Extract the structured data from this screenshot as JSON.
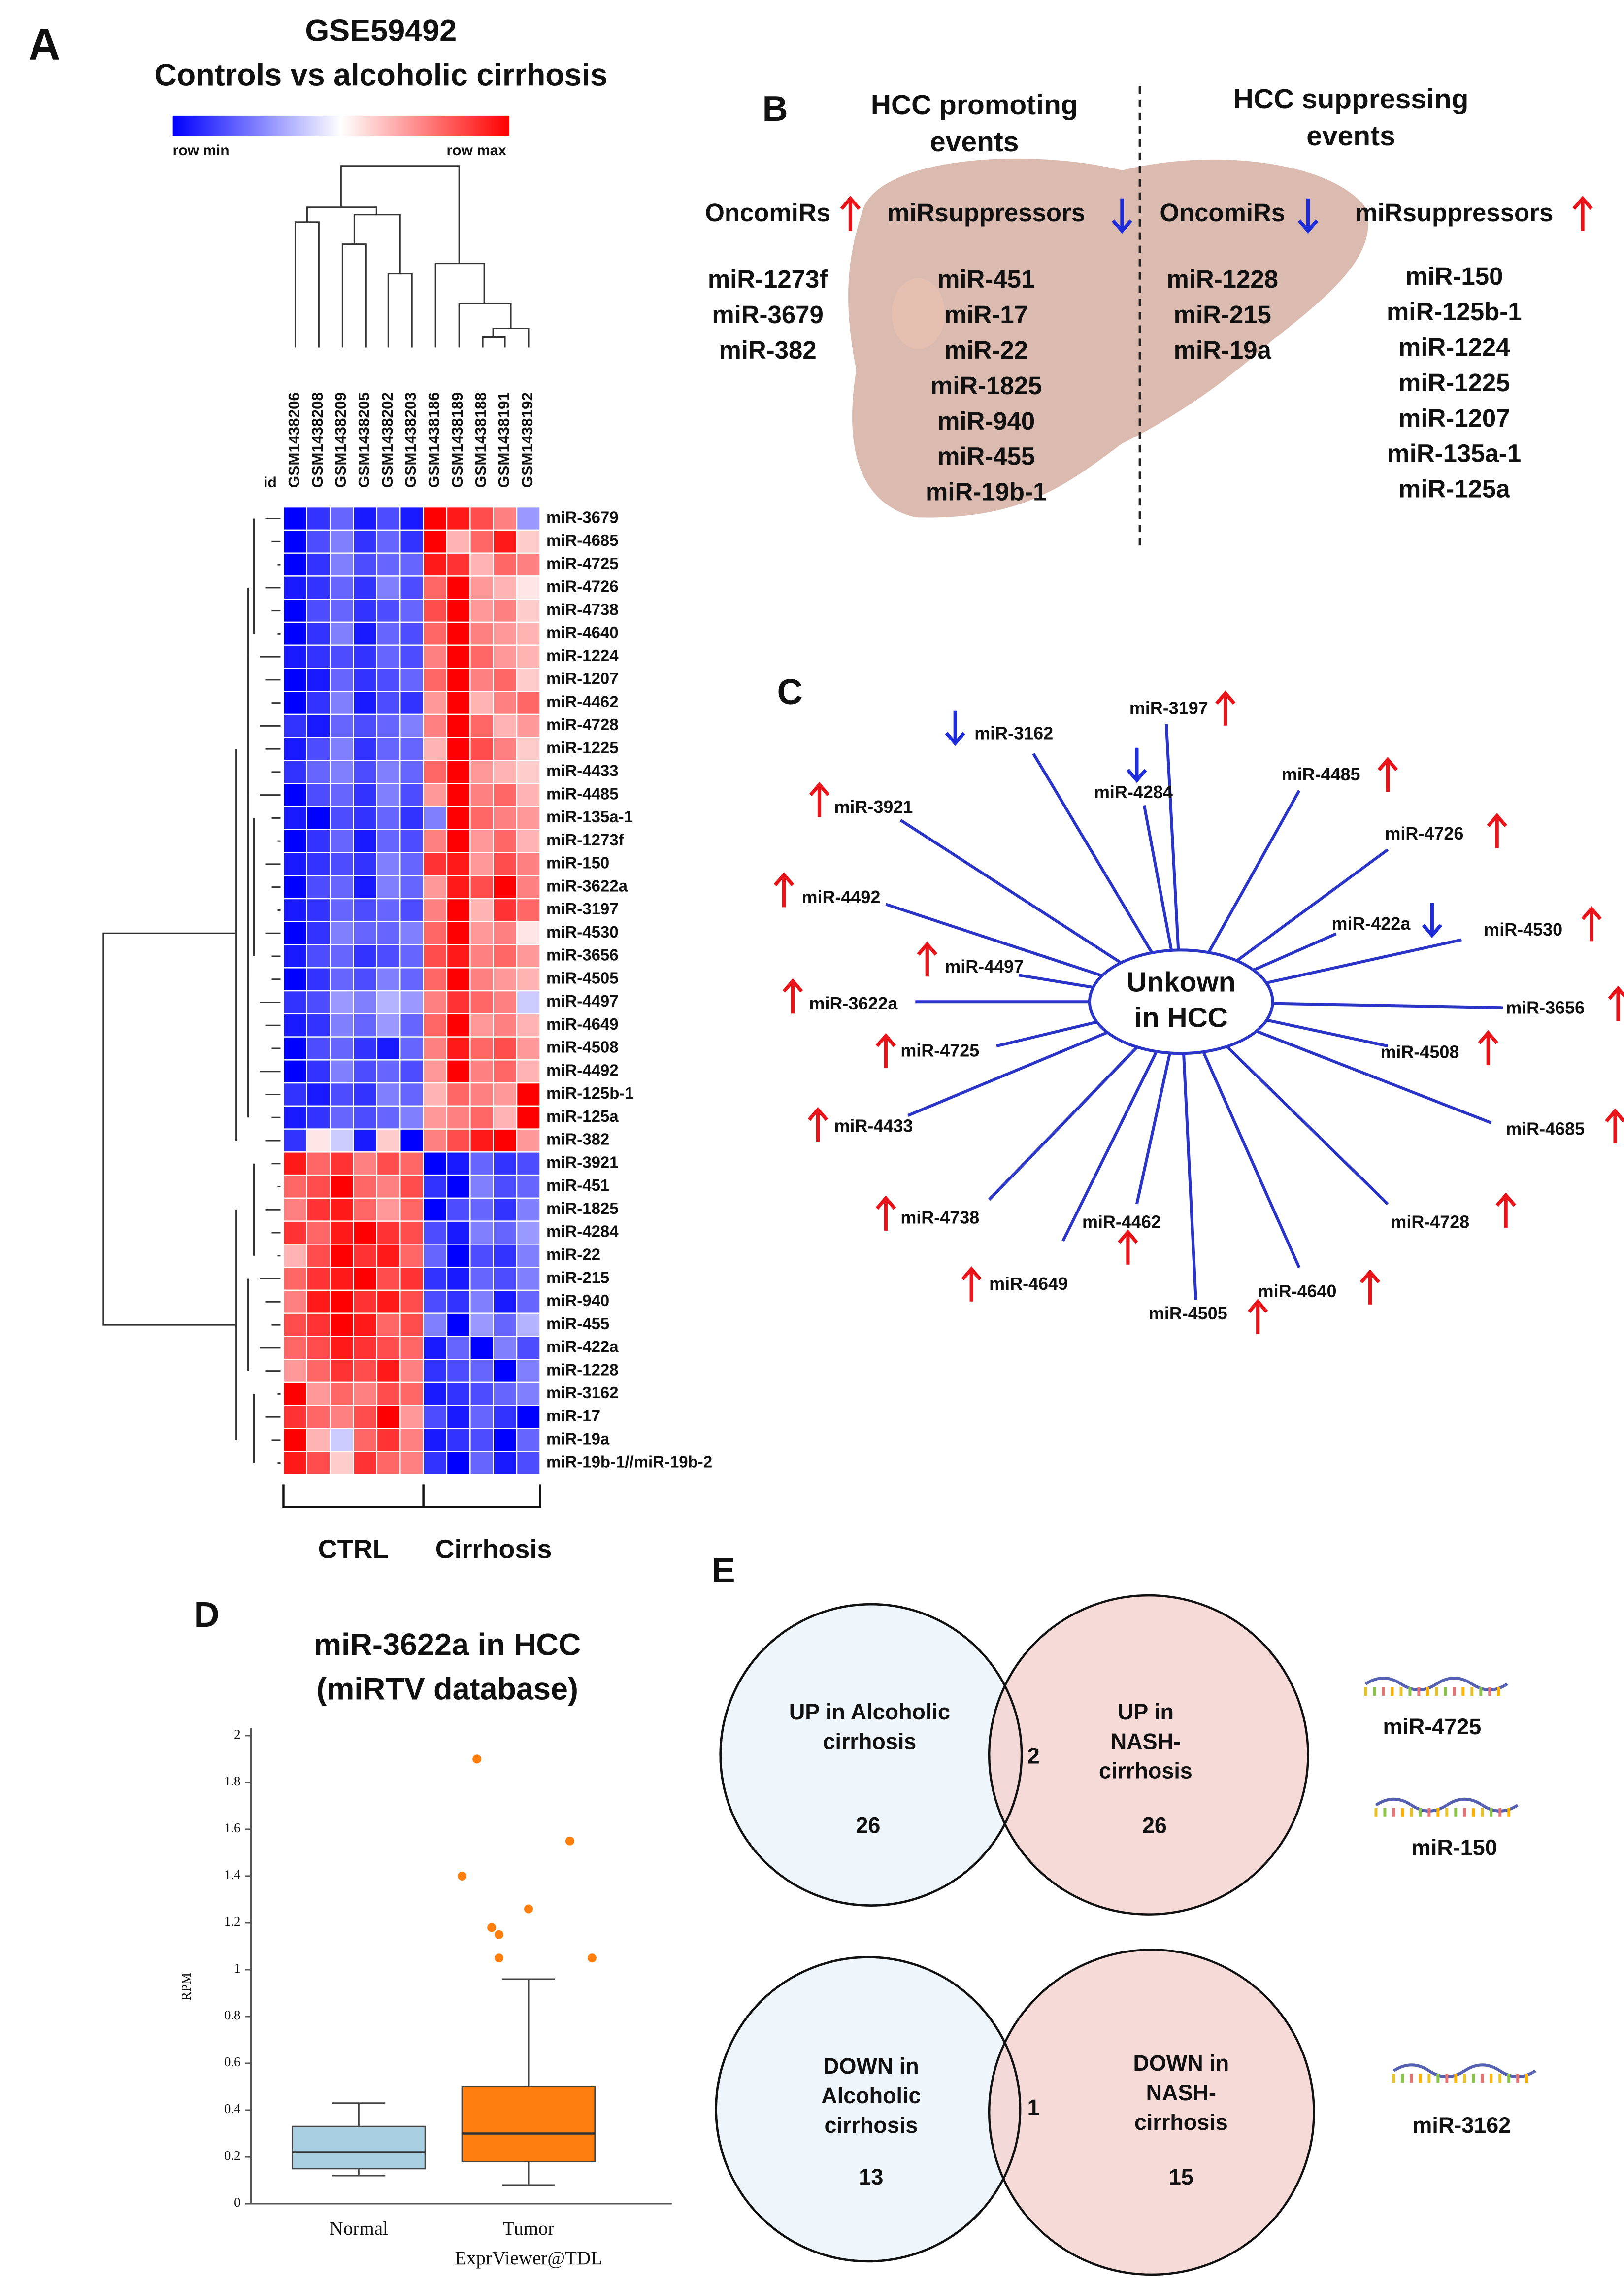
{
  "panel_a": {
    "letter": "A",
    "title": [
      "GSE59492",
      "Controls vs alcoholic cirrhosis"
    ],
    "color_scale": {
      "min_label": "row min",
      "max_label": "row max"
    },
    "column_header": "id",
    "columns": [
      "GSM1438206",
      "GSM1438208",
      "GSM1438209",
      "GSM1438205",
      "GSM1438202",
      "GSM1438203",
      "GSM1438186",
      "GSM1438189",
      "GSM1438188",
      "GSM1438191",
      "GSM1438192"
    ],
    "rows": [
      "miR-3679",
      "miR-4685",
      "miR-4725",
      "miR-4726",
      "miR-4738",
      "miR-4640",
      "miR-1224",
      "miR-1207",
      "miR-4462",
      "miR-4728",
      "miR-1225",
      "miR-4433",
      "miR-4485",
      "miR-135a-1",
      "miR-1273f",
      "miR-150",
      "miR-3622a",
      "miR-3197",
      "miR-4530",
      "miR-3656",
      "miR-4505",
      "miR-4497",
      "miR-4649",
      "miR-4508",
      "miR-4492",
      "miR-125b-1",
      "miR-125a",
      "miR-382",
      "miR-3921",
      "miR-451",
      "miR-1825",
      "miR-4284",
      "miR-22",
      "miR-215",
      "miR-940",
      "miR-455",
      "miR-422a",
      "miR-1228",
      "miR-3162",
      "miR-17",
      "miR-19a",
      "miR-19b-1//miR-19b-2"
    ],
    "values": [
      [
        -1,
        -0.8,
        -0.6,
        -0.9,
        -0.7,
        -0.9,
        1,
        0.9,
        0.7,
        0.5,
        -0.4
      ],
      [
        -1,
        -0.7,
        -0.5,
        -0.8,
        -0.6,
        -0.8,
        1,
        0.3,
        0.6,
        0.9,
        0.2
      ],
      [
        -1,
        -0.8,
        -0.5,
        -0.7,
        -0.6,
        -0.6,
        0.9,
        0.8,
        0.3,
        0.6,
        0.5
      ],
      [
        -0.9,
        -0.8,
        -0.6,
        -0.8,
        -0.5,
        -0.7,
        0.6,
        1,
        0.4,
        0.3,
        0.1
      ],
      [
        -1,
        -0.7,
        -0.6,
        -0.8,
        -0.7,
        -0.6,
        0.7,
        1,
        0.4,
        0.5,
        0.2
      ],
      [
        -1,
        -0.8,
        -0.5,
        -0.9,
        -0.6,
        -0.7,
        0.6,
        1,
        0.5,
        0.4,
        0.3
      ],
      [
        -0.9,
        -0.8,
        -0.7,
        -0.8,
        -0.6,
        -0.7,
        0.5,
        1,
        0.6,
        0.4,
        0.3
      ],
      [
        -1,
        -0.9,
        -0.6,
        -0.8,
        -0.7,
        -0.6,
        0.6,
        1,
        0.5,
        0.6,
        0.2
      ],
      [
        -1,
        -0.8,
        -0.5,
        -0.9,
        -0.7,
        -0.8,
        0.4,
        1,
        0.3,
        0.5,
        0.6
      ],
      [
        -0.8,
        -0.9,
        -0.6,
        -0.7,
        -0.6,
        -0.5,
        0.5,
        1,
        0.6,
        0.3,
        0.4
      ],
      [
        -0.9,
        -0.7,
        -0.5,
        -0.8,
        -0.6,
        -0.6,
        0.3,
        1,
        0.7,
        0.5,
        0.2
      ],
      [
        -0.8,
        -0.6,
        -0.5,
        -0.7,
        -0.5,
        -0.6,
        0.6,
        1,
        0.4,
        0.3,
        0.2
      ],
      [
        -1,
        -0.7,
        -0.6,
        -0.8,
        -0.5,
        -0.7,
        0.4,
        1,
        0.5,
        0.6,
        0.3
      ],
      [
        -0.9,
        -1,
        -0.7,
        -0.8,
        -0.6,
        -0.8,
        -0.5,
        1,
        0.6,
        0.5,
        0.4
      ],
      [
        -1,
        -0.8,
        -0.6,
        -0.9,
        -0.6,
        -0.7,
        0.5,
        1,
        0.4,
        0.6,
        0.3
      ],
      [
        -0.9,
        -0.8,
        -0.7,
        -0.8,
        -0.5,
        -0.6,
        0.8,
        0.9,
        0.4,
        0.7,
        0.5
      ],
      [
        -1,
        -0.7,
        -0.6,
        -0.9,
        -0.5,
        -0.6,
        0.4,
        0.9,
        0.7,
        1,
        0.5
      ],
      [
        -0.9,
        -0.8,
        -0.6,
        -0.7,
        -0.6,
        -0.7,
        0.5,
        1,
        0.3,
        0.8,
        0.6
      ],
      [
        -1,
        -0.8,
        -0.5,
        -0.6,
        -0.6,
        -0.5,
        0.6,
        1,
        0.4,
        0.5,
        0.1
      ],
      [
        -0.9,
        -0.7,
        -0.6,
        -0.8,
        -0.7,
        -0.6,
        0.7,
        0.9,
        0.5,
        0.6,
        0.4
      ],
      [
        -1,
        -0.8,
        -0.6,
        -0.7,
        -0.5,
        -0.6,
        0.6,
        1,
        0.5,
        0.4,
        0.3
      ],
      [
        -0.8,
        -0.7,
        -0.4,
        -0.5,
        -0.3,
        -0.4,
        0.5,
        0.8,
        0.6,
        0.5,
        -0.2
      ],
      [
        -0.9,
        -0.8,
        -0.5,
        -0.6,
        -0.4,
        -0.6,
        0.6,
        1,
        0.4,
        0.5,
        0.3
      ],
      [
        -1,
        -0.7,
        -0.6,
        -0.8,
        -0.9,
        -0.6,
        0.5,
        0.9,
        0.6,
        0.7,
        0.4
      ],
      [
        -1,
        -0.8,
        -0.5,
        -0.7,
        -0.6,
        -0.7,
        0.4,
        1,
        0.5,
        0.6,
        0.3
      ],
      [
        -0.8,
        -0.9,
        -0.7,
        -0.8,
        -0.5,
        -0.6,
        0.3,
        0.6,
        0.5,
        0.4,
        1
      ],
      [
        -0.9,
        -0.8,
        -0.6,
        -0.7,
        -0.6,
        -0.5,
        0.4,
        0.5,
        0.6,
        0.3,
        1
      ],
      [
        -0.8,
        0.1,
        -0.2,
        -0.9,
        0.2,
        -1,
        0.5,
        0.7,
        0.9,
        1,
        0.4
      ],
      [
        0.9,
        0.6,
        0.8,
        0.5,
        0.7,
        0.6,
        -1,
        -0.9,
        -0.6,
        -0.8,
        -0.7
      ],
      [
        0.6,
        0.7,
        1,
        0.6,
        0.5,
        0.7,
        -0.8,
        -1,
        -0.5,
        -0.7,
        -0.6
      ],
      [
        0.5,
        0.8,
        0.9,
        0.6,
        0.4,
        0.6,
        -1,
        -0.7,
        -0.6,
        -0.8,
        -0.5
      ],
      [
        0.8,
        0.6,
        0.9,
        1,
        0.8,
        0.7,
        -0.7,
        -0.9,
        -0.5,
        -0.6,
        -0.4
      ],
      [
        0.3,
        0.7,
        1,
        0.8,
        0.9,
        0.6,
        -0.6,
        -1,
        -0.7,
        -0.8,
        -0.5
      ],
      [
        0.6,
        0.8,
        0.9,
        1,
        0.7,
        0.8,
        -0.8,
        -0.9,
        -0.6,
        -0.7,
        -0.5
      ],
      [
        0.5,
        0.9,
        1,
        0.8,
        0.9,
        0.7,
        -0.7,
        -0.8,
        -0.5,
        -0.9,
        -0.6
      ],
      [
        0.7,
        0.8,
        1,
        0.9,
        0.6,
        0.7,
        -0.5,
        -1,
        -0.4,
        -0.6,
        -0.3
      ],
      [
        0.6,
        0.7,
        0.9,
        0.8,
        0.7,
        0.6,
        -0.9,
        -0.6,
        -1,
        -0.5,
        -0.7
      ],
      [
        0.4,
        0.6,
        0.8,
        0.7,
        0.9,
        0.5,
        -0.8,
        -0.7,
        -0.6,
        -1,
        -0.5
      ],
      [
        1,
        0.4,
        0.6,
        0.5,
        0.7,
        0.6,
        -0.9,
        -0.8,
        -0.7,
        -0.6,
        -0.5
      ],
      [
        0.8,
        0.6,
        0.5,
        0.7,
        1,
        0.4,
        -0.7,
        -0.9,
        -0.6,
        -0.8,
        -1
      ],
      [
        1,
        0.3,
        -0.2,
        0.6,
        0.8,
        0.5,
        -0.9,
        -0.8,
        -0.7,
        -1,
        -0.6
      ],
      [
        0.9,
        0.7,
        0.2,
        0.8,
        0.6,
        0.5,
        -0.8,
        -1,
        -0.6,
        -0.9,
        -0.7
      ]
    ],
    "groups": [
      "CTRL",
      "Cirrhosis"
    ]
  },
  "panel_b": {
    "letter": "B",
    "promoting": {
      "title": [
        "HCC promoting",
        "events"
      ],
      "oncomirs": {
        "header": "OncomiRs",
        "items": [
          "miR-1273f",
          "miR-3679",
          "miR-382"
        ]
      },
      "suppressors": {
        "header": "miRsuppressors",
        "items": [
          "miR-451",
          "miR-17",
          "miR-22",
          "miR-1825",
          "miR-940",
          "miR-455",
          "miR-19b-1"
        ]
      }
    },
    "suppressing": {
      "title": [
        "HCC suppressing",
        "events"
      ],
      "oncomirs": {
        "header": "OncomiRs",
        "items": [
          "miR-1228",
          "miR-215",
          "miR-19a"
        ]
      },
      "suppressors": {
        "header": "miRsuppressors",
        "items": [
          "miR-150",
          "miR-125b-1",
          "miR-1224",
          "miR-1225",
          "miR-1207",
          "miR-135a-1",
          "miR-125a"
        ]
      }
    }
  },
  "panel_c": {
    "letter": "C",
    "center": [
      "Unkown",
      "in HCC"
    ],
    "nodes": [
      {
        "label": "miR-3162",
        "direction": "down"
      },
      {
        "label": "miR-3197",
        "direction": "up"
      },
      {
        "label": "miR-4284",
        "direction": "down"
      },
      {
        "label": "miR-4485",
        "direction": "up"
      },
      {
        "label": "miR-3921",
        "direction": "up"
      },
      {
        "label": "miR-4726",
        "direction": "up"
      },
      {
        "label": "miR-4492",
        "direction": "up"
      },
      {
        "label": "miR-422a",
        "direction": "down"
      },
      {
        "label": "miR-4530",
        "direction": "up"
      },
      {
        "label": "miR-4497",
        "direction": "up"
      },
      {
        "label": "miR-3622a",
        "direction": "up"
      },
      {
        "label": "miR-3656",
        "direction": "up"
      },
      {
        "label": "miR-4725",
        "direction": "up"
      },
      {
        "label": "miR-4508",
        "direction": "up"
      },
      {
        "label": "miR-4433",
        "direction": "up"
      },
      {
        "label": "miR-4685",
        "direction": "up"
      },
      {
        "label": "miR-4738",
        "direction": "up"
      },
      {
        "label": "miR-4462",
        "direction": "up"
      },
      {
        "label": "miR-4728",
        "direction": "up"
      },
      {
        "label": "miR-4649",
        "direction": "up"
      },
      {
        "label": "miR-4505",
        "direction": "up"
      },
      {
        "label": "miR-4640",
        "direction": "up"
      }
    ]
  },
  "chart_data": {
    "type": "box",
    "panel_label": "D",
    "title": [
      "miR-3622a in HCC",
      "(miRTV database)"
    ],
    "ylabel": "RPM",
    "categories": [
      "Normal",
      "Tumor"
    ],
    "boxes": [
      {
        "min": 0.12,
        "q1": 0.15,
        "median": 0.22,
        "q3": 0.33,
        "max": 0.43,
        "color": "#a9cfe3"
      },
      {
        "min": 0.08,
        "q1": 0.18,
        "median": 0.3,
        "q3": 0.5,
        "max": 0.96,
        "outliers": [
          1.9,
          1.4,
          1.55,
          1.26,
          1.18,
          1.15,
          1.05,
          1.05
        ],
        "color": "#ff7f0e"
      }
    ],
    "ylim": [
      0,
      2
    ],
    "yticks": [
      0,
      0.2,
      0.4,
      0.6,
      0.8,
      1,
      1.2,
      1.4,
      1.6,
      1.8,
      2
    ],
    "watermark": "ExprViewer@TDL"
  },
  "panel_e": {
    "letter": "E",
    "venns": [
      {
        "left": {
          "label": [
            "UP in Alcoholic",
            "cirrhosis"
          ],
          "count": 26
        },
        "overlap": 2,
        "right": {
          "label": [
            "UP in",
            "NASH-",
            "cirrhosis"
          ],
          "count": 26
        },
        "mirnas": [
          "miR-4725",
          "miR-150"
        ]
      },
      {
        "left": {
          "label": [
            "DOWN in",
            "Alcoholic",
            "cirrhosis"
          ],
          "count": 13
        },
        "overlap": 1,
        "right": {
          "label": [
            "DOWN in",
            "NASH-",
            "cirrhosis"
          ],
          "count": 15
        },
        "mirnas": [
          "miR-3162"
        ]
      }
    ]
  }
}
